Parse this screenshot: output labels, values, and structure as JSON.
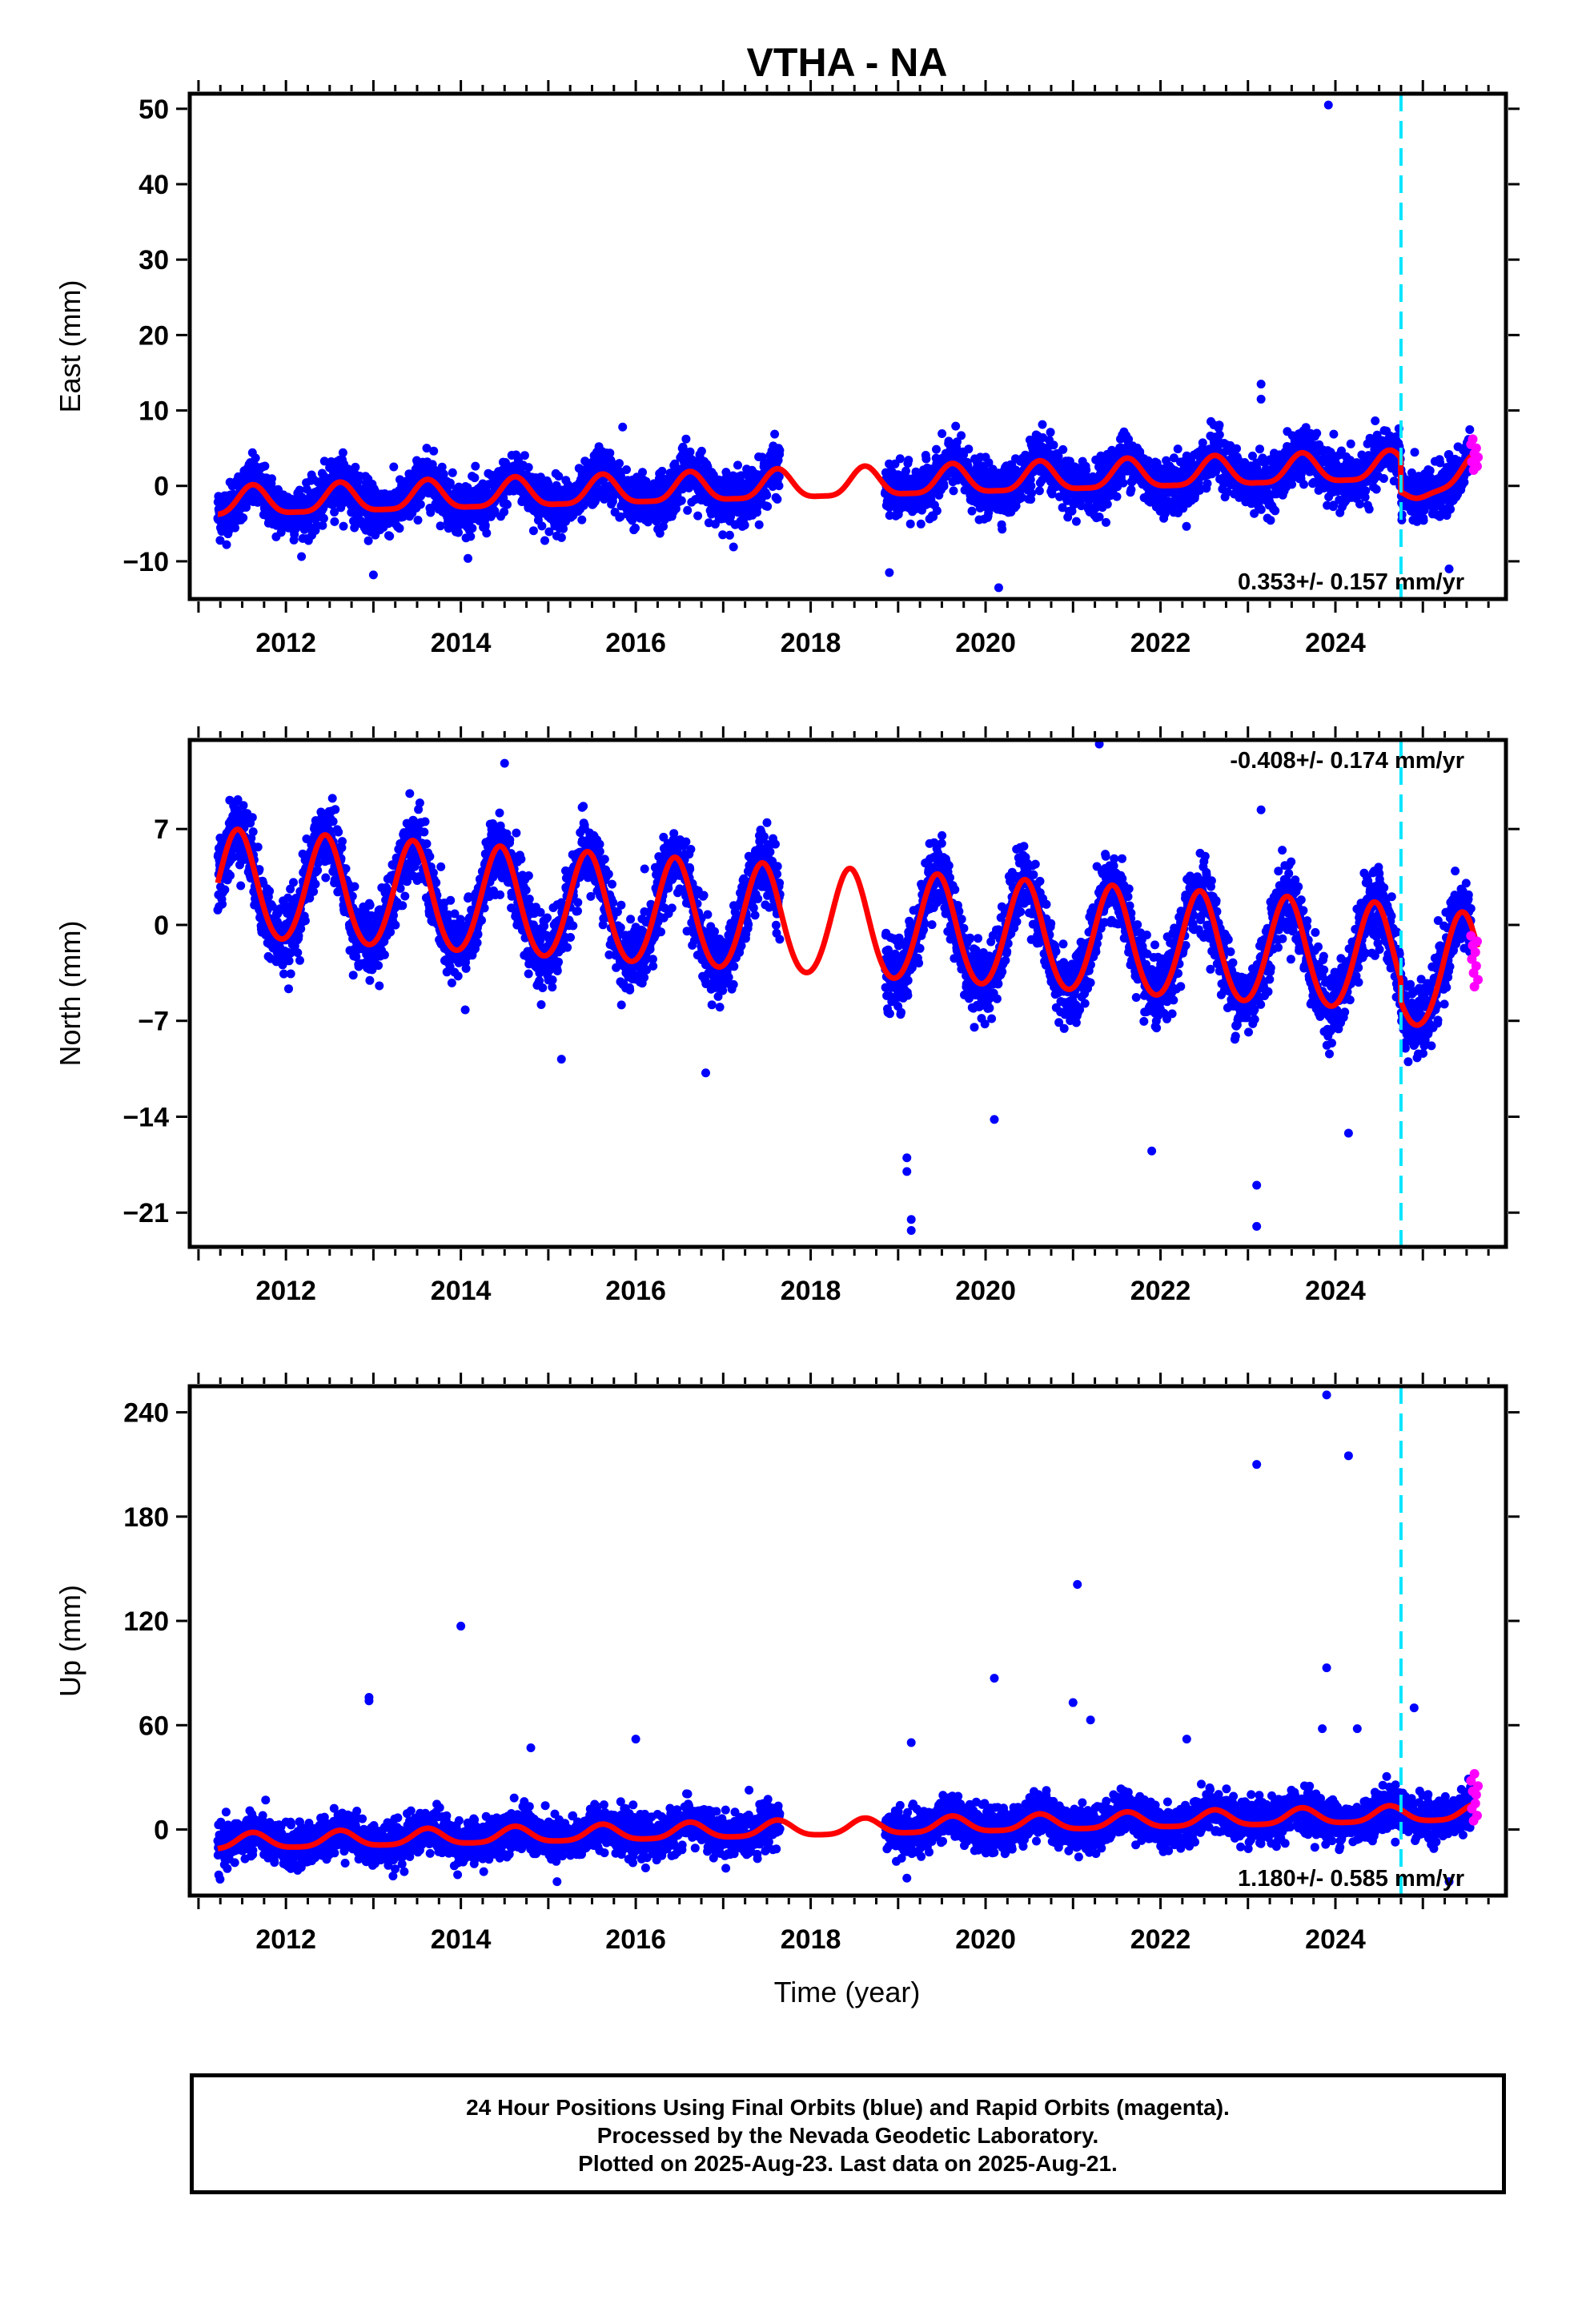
{
  "title": "VTHA - NA",
  "xlabel": "Time (year)",
  "caption": {
    "line1": "24 Hour Positions Using Final Orbits (blue) and Rapid Orbits (magenta).",
    "line2": "Processed by the Nevada Geodetic Laboratory.",
    "line3": "Plotted on 2025-Aug-23. Last data on 2025-Aug-21."
  },
  "colors": {
    "final_orbits": "#0000ff",
    "rapid_orbits": "#ff00ff",
    "model": "#ff0000",
    "event_line": "#00e5ff"
  },
  "chart_data": [
    {
      "type": "scatter",
      "component": "east",
      "ylabel": "East (mm)",
      "xlim": [
        2010.9,
        2025.95
      ],
      "ylim": [
        -15,
        52
      ],
      "xticks": [
        2012,
        2014,
        2016,
        2018,
        2020,
        2022,
        2024
      ],
      "xtick_labels": [
        "2012",
        "2014",
        "2016",
        "2018",
        "2020",
        "2022",
        "2024"
      ],
      "yticks": [
        -10,
        0,
        10,
        20,
        30,
        40,
        50
      ],
      "ytick_labels": [
        "−10",
        "0",
        "10",
        "20",
        "30",
        "40",
        "50"
      ],
      "rate_label": "0.353+/- 0.157 mm/yr",
      "rate_position": "bottom-right",
      "event_line_x": 2024.75,
      "data_gap": [
        2017.65,
        2018.85
      ],
      "model": {
        "offset": -2.5,
        "rate": 0.353,
        "annual_amp": 1.9,
        "annual_phase_peak": 0.62,
        "semiannual_amp": 0.5,
        "step_at_event": -4.5
      },
      "scatter_sd": 1.7,
      "outliers": [
        {
          "x": 2023.92,
          "y": 50.5
        },
        {
          "x": 2023.15,
          "y": 13.5
        },
        {
          "x": 2023.15,
          "y": 11.5
        },
        {
          "x": 2015.85,
          "y": 7.8
        },
        {
          "x": 2013.0,
          "y": -11.8
        },
        {
          "x": 2018.9,
          "y": -11.5
        },
        {
          "x": 2020.15,
          "y": -13.5
        },
        {
          "x": 2025.3,
          "y": -11.0
        }
      ],
      "rapid_points": [
        [
          2025.55,
          5.5
        ],
        [
          2025.56,
          3.2
        ],
        [
          2025.57,
          6.2
        ],
        [
          2025.58,
          2.1
        ],
        [
          2025.59,
          4.3
        ],
        [
          2025.6,
          3.0
        ],
        [
          2025.61,
          5.0
        ],
        [
          2025.62,
          2.6
        ],
        [
          2025.63,
          3.8
        ]
      ]
    },
    {
      "type": "scatter",
      "component": "north",
      "ylabel": "North (mm)",
      "xlim": [
        2010.9,
        2025.95
      ],
      "ylim": [
        -23.5,
        13.5
      ],
      "xticks": [
        2012,
        2014,
        2016,
        2018,
        2020,
        2022,
        2024
      ],
      "xtick_labels": [
        "2012",
        "2014",
        "2016",
        "2018",
        "2020",
        "2022",
        "2024"
      ],
      "yticks": [
        -21,
        -14,
        -7,
        0,
        7
      ],
      "ytick_labels": [
        "−21",
        "−14",
        "−7",
        "0",
        "7"
      ],
      "rate_label": "-0.408+/- 0.174 mm/yr",
      "rate_position": "top-right",
      "event_line_x": 2024.75,
      "data_gap": [
        2017.65,
        2018.85
      ],
      "model": {
        "offset": 3.0,
        "rate": -0.408,
        "annual_amp": 3.9,
        "annual_phase_peak": 0.45,
        "semiannual_amp": 0.3,
        "step_at_event": -1.5
      },
      "scatter_sd": 1.3,
      "outliers": [
        {
          "x": 2021.3,
          "y": 13.2
        },
        {
          "x": 2014.5,
          "y": 11.8
        },
        {
          "x": 2023.15,
          "y": 8.4
        },
        {
          "x": 2019.1,
          "y": -17.0
        },
        {
          "x": 2019.1,
          "y": -18.0
        },
        {
          "x": 2019.15,
          "y": -21.5
        },
        {
          "x": 2019.15,
          "y": -22.3
        },
        {
          "x": 2023.1,
          "y": -22.0
        },
        {
          "x": 2023.1,
          "y": -19.0
        },
        {
          "x": 2024.15,
          "y": -15.2
        },
        {
          "x": 2021.9,
          "y": -16.5
        },
        {
          "x": 2020.1,
          "y": -14.2
        },
        {
          "x": 2016.8,
          "y": -10.8
        },
        {
          "x": 2015.15,
          "y": -9.8
        },
        {
          "x": 2014.05,
          "y": -6.2
        }
      ],
      "rapid_points": [
        [
          2025.55,
          -0.8
        ],
        [
          2025.56,
          -2.5
        ],
        [
          2025.57,
          -1.5
        ],
        [
          2025.58,
          -3.5
        ],
        [
          2025.59,
          -4.5
        ],
        [
          2025.6,
          -2.0
        ],
        [
          2025.61,
          -3.0
        ],
        [
          2025.62,
          -1.2
        ],
        [
          2025.63,
          -4.0
        ]
      ]
    },
    {
      "type": "scatter",
      "component": "up",
      "ylabel": "Up (mm)",
      "xlim": [
        2010.9,
        2025.95
      ],
      "ylim": [
        -38,
        255
      ],
      "xticks": [
        2012,
        2014,
        2016,
        2018,
        2020,
        2022,
        2024
      ],
      "xtick_labels": [
        "2012",
        "2014",
        "2016",
        "2018",
        "2020",
        "2022",
        "2024"
      ],
      "yticks": [
        0,
        60,
        120,
        180,
        240
      ],
      "ytick_labels": [
        "0",
        "60",
        "120",
        "180",
        "240"
      ],
      "rate_label": "1.180+/- 0.585 mm/yr",
      "rate_position": "bottom-right",
      "event_line_x": 2024.75,
      "data_gap": [
        2017.65,
        2018.85
      ],
      "model": {
        "offset": -8.0,
        "rate": 1.18,
        "annual_amp": 4.5,
        "annual_phase_peak": 0.62,
        "semiannual_amp": 1.0,
        "step_at_event": 0.0
      },
      "scatter_sd": 6.0,
      "outliers": [
        {
          "x": 2023.9,
          "y": 250
        },
        {
          "x": 2024.15,
          "y": 215
        },
        {
          "x": 2023.1,
          "y": 210
        },
        {
          "x": 2021.05,
          "y": 141
        },
        {
          "x": 2014.0,
          "y": 117
        },
        {
          "x": 2023.9,
          "y": 93
        },
        {
          "x": 2020.1,
          "y": 87
        },
        {
          "x": 2012.95,
          "y": 76
        },
        {
          "x": 2012.95,
          "y": 74
        },
        {
          "x": 2021.0,
          "y": 73
        },
        {
          "x": 2024.9,
          "y": 70
        },
        {
          "x": 2021.2,
          "y": 63
        },
        {
          "x": 2024.25,
          "y": 58
        },
        {
          "x": 2016.0,
          "y": 52
        },
        {
          "x": 2022.3,
          "y": 52
        },
        {
          "x": 2023.85,
          "y": 58
        },
        {
          "x": 2019.15,
          "y": 50
        },
        {
          "x": 2014.8,
          "y": 47
        },
        {
          "x": 2015.1,
          "y": -30
        },
        {
          "x": 2019.1,
          "y": -28
        },
        {
          "x": 2025.3,
          "y": -30
        }
      ],
      "rapid_points": [
        [
          2025.55,
          28
        ],
        [
          2025.56,
          12
        ],
        [
          2025.57,
          22
        ],
        [
          2025.58,
          5
        ],
        [
          2025.59,
          32
        ],
        [
          2025.6,
          15
        ],
        [
          2025.61,
          20
        ],
        [
          2025.62,
          8
        ],
        [
          2025.63,
          25
        ]
      ]
    }
  ]
}
